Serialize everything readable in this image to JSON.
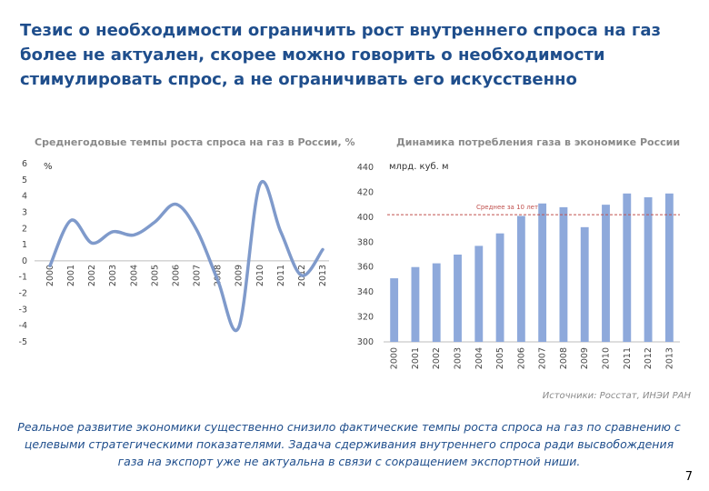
{
  "slide": {
    "title": "Тезис о необходимости ограничить рост внутреннего спроса на газ более не актуален, скорее можно говорить о необходимости стимулировать спрос, а не ограничивать его искусственно",
    "source": "Источники: Росстат, ИНЭИ РАН",
    "bottom_text": "Реальное развитие экономики существенно снизило фактические темпы роста спроса на газ по сравнению с целевыми стратегическими показателями. Задача сдерживания внутреннего спроса ради высвобождения газа на экспорт уже не актуальна в связи с сокращением экспортной ниши.",
    "page_number": "7"
  },
  "chart_data": [
    {
      "type": "line",
      "title": "Среднегодовые темпы роста спроса на газ в России, %",
      "unit_label": "%",
      "ylim": [
        -5,
        6
      ],
      "yticks": [
        "6",
        "5",
        "4",
        "3",
        "2",
        "1",
        "0",
        "-1",
        "-2",
        "-3",
        "-4",
        "-5"
      ],
      "categories": [
        "2000",
        "2001",
        "2002",
        "2003",
        "2004",
        "2005",
        "2006",
        "2007",
        "2008",
        "2009",
        "2010",
        "2011",
        "2012",
        "2013"
      ],
      "values": [
        -0.3,
        2.5,
        1.1,
        1.8,
        1.6,
        2.4,
        3.5,
        1.9,
        -1.2,
        -4.1,
        4.7,
        1.8,
        -0.9,
        0.7
      ],
      "color": "#7f9acb"
    },
    {
      "type": "bar",
      "title": "Динамика потребления газа в экономике России",
      "unit_label": "млрд. куб. м",
      "ylim": [
        300,
        440
      ],
      "yticks": [
        "440",
        "420",
        "400",
        "380",
        "360",
        "340",
        "320",
        "300"
      ],
      "categories": [
        "2000",
        "2001",
        "2002",
        "2003",
        "2004",
        "2005",
        "2006",
        "2007",
        "2008",
        "2009",
        "2010",
        "2011",
        "2012",
        "2013"
      ],
      "values": [
        351,
        360,
        363,
        370,
        377,
        387,
        401,
        411,
        408,
        392,
        410,
        419,
        416,
        419
      ],
      "average_line": {
        "label": "Среднее за 10 лет",
        "value": 402
      },
      "color": "#8ea9db",
      "avg_color": "#c0504d"
    }
  ]
}
